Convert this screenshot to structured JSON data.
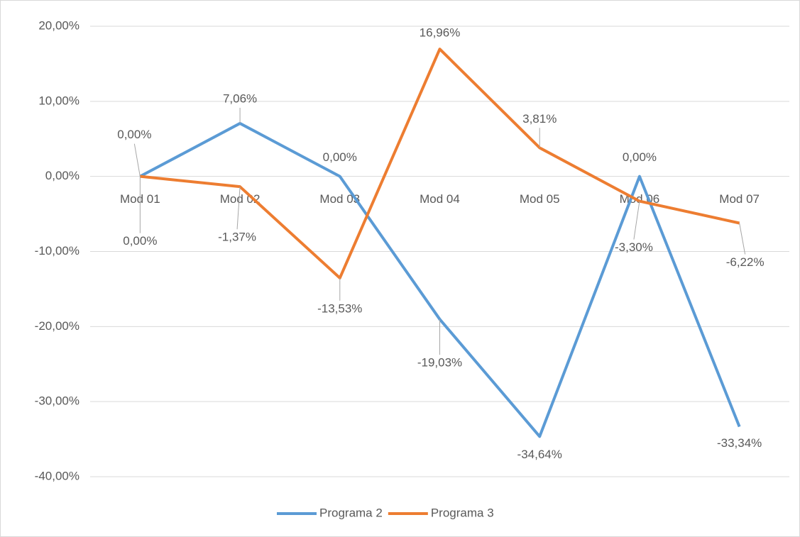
{
  "chart_data": {
    "type": "line",
    "categories": [
      "Mod 01",
      "Mod 02",
      "Mod 03",
      "Mod 04",
      "Mod 05",
      "Mod 06",
      "Mod 07"
    ],
    "series": [
      {
        "name": "Programa 2",
        "color": "#5b9bd5",
        "values": [
          0,
          7.06,
          0,
          -19.03,
          -34.64,
          0,
          -33.34
        ],
        "value_labels": [
          "0,00%",
          "7,06%",
          "0,00%",
          "-19,03%",
          "-34,64%",
          "0,00%",
          "-33,34%"
        ]
      },
      {
        "name": "Programa 3",
        "color": "#ed7d31",
        "values": [
          0,
          -1.37,
          -13.53,
          16.96,
          3.81,
          -3.3,
          -6.22
        ],
        "value_labels": [
          "0,00%",
          "-1,37%",
          "-13,53%",
          "16,96%",
          "3,81%",
          "-3,30%",
          "-6,22%"
        ]
      }
    ],
    "ylim": [
      -40,
      20
    ],
    "yticks": [
      {
        "value": 20,
        "label": "20,00%"
      },
      {
        "value": 10,
        "label": "10,00%"
      },
      {
        "value": 0,
        "label": "0,00%"
      },
      {
        "value": -10,
        "label": "-10,00%"
      },
      {
        "value": -20,
        "label": "-20,00%"
      },
      {
        "value": -30,
        "label": "-30,00%"
      },
      {
        "value": -40,
        "label": "-40,00%"
      }
    ],
    "grid": true
  }
}
